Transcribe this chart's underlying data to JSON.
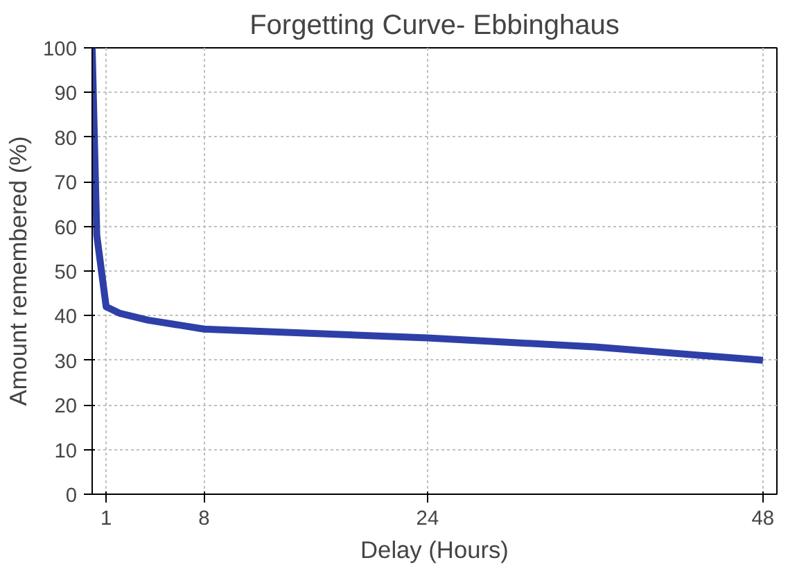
{
  "chart_data": {
    "type": "line",
    "title": "Forgetting Curve- Ebbinghaus",
    "xlabel": "Delay (Hours)",
    "ylabel": "Amount remembered (%)",
    "x": [
      0,
      0.33,
      1,
      2,
      4,
      8,
      12,
      24,
      36,
      48
    ],
    "series": [
      {
        "color": "#2e3fa8",
        "values": [
          100,
          58,
          42,
          40.5,
          39,
          37,
          36.5,
          35,
          33,
          30
        ]
      }
    ],
    "xlim": [
      0,
      49
    ],
    "xticks": [
      1,
      8,
      24,
      48
    ],
    "ylim": [
      0,
      100
    ],
    "yticks": [
      0,
      10,
      20,
      30,
      40,
      50,
      60,
      70,
      80,
      90,
      100
    ],
    "grid": true,
    "line_style": "solid"
  }
}
